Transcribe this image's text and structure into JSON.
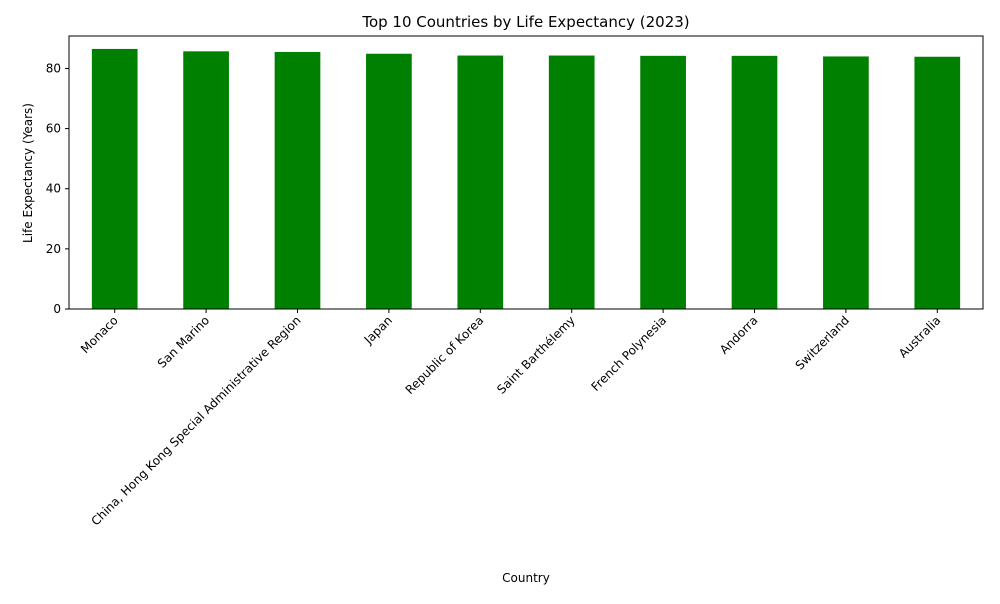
{
  "colors": {
    "bar": "#008000",
    "axis": "#000000",
    "background": "#ffffff"
  },
  "chart_data": {
    "type": "bar",
    "title": "Top 10 Countries by Life Expectancy (2023)",
    "xlabel": "Country",
    "ylabel": "Life Expectancy (Years)",
    "categories": [
      "Monaco",
      "San Marino",
      "China, Hong Kong Special Administrative Region",
      "Japan",
      "Republic of Korea",
      "Saint Barthélemy",
      "French Polynesia",
      "Andorra",
      "Switzerland",
      "Australia"
    ],
    "values": [
      86.5,
      85.7,
      85.5,
      84.9,
      84.3,
      84.3,
      84.2,
      84.2,
      84.0,
      83.9
    ],
    "ylim": [
      0,
      90.8
    ],
    "yticks": [
      0,
      20,
      40,
      60,
      80
    ],
    "grid": false,
    "legend": false
  }
}
